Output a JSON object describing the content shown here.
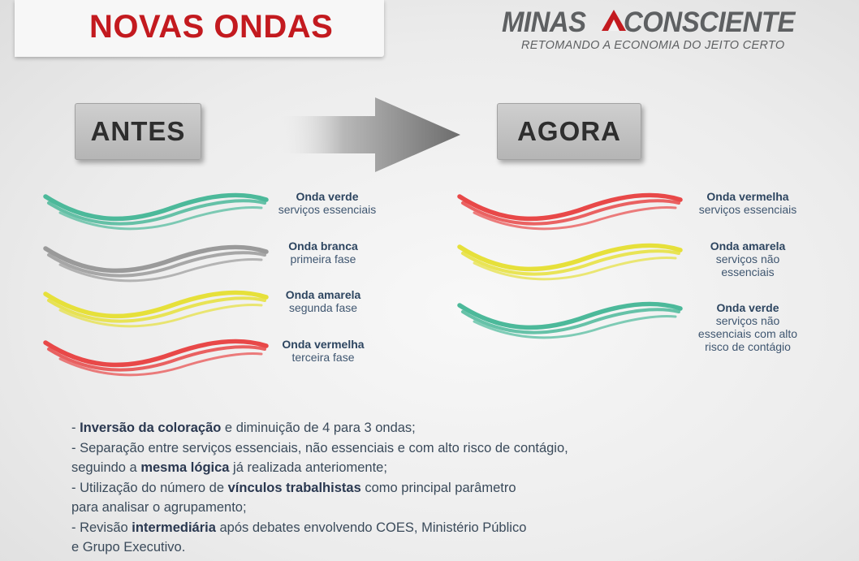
{
  "header": {
    "title": "NOVAS ONDAS",
    "logo": {
      "word1": "MINAS",
      "word2": "CONSCIENTE",
      "tagline": "RETOMANDO A ECONOMIA DO JEITO CERTO"
    }
  },
  "antes": {
    "label": "ANTES",
    "waves": [
      {
        "name": "Onda verde",
        "desc": [
          "serviços essenciais"
        ],
        "color": "#4cb99a"
      },
      {
        "name": "Onda branca",
        "desc": [
          "primeira fase"
        ],
        "color": "#9a9a9a"
      },
      {
        "name": "Onda amarela",
        "desc": [
          "segunda fase"
        ],
        "color": "#e6e03a"
      },
      {
        "name": "Onda vermelha",
        "desc": [
          "terceira fase"
        ],
        "color": "#e84848"
      }
    ]
  },
  "agora": {
    "label": "AGORA",
    "waves": [
      {
        "name": "Onda vermelha",
        "desc": [
          "serviços essenciais"
        ],
        "color": "#e84848"
      },
      {
        "name": "Onda amarela",
        "desc": [
          "serviços não",
          "essenciais"
        ],
        "color": "#e6e03a"
      },
      {
        "name": "Onda verde",
        "desc": [
          "serviços não",
          "essenciais com alto",
          "risco de contágio"
        ],
        "color": "#4cb99a"
      }
    ]
  },
  "bullets": [
    [
      {
        "t": "- "
      },
      {
        "t": "Inversão da coloração",
        "b": true
      },
      {
        "t": " e diminuição de 4 para 3 ondas;"
      }
    ],
    [
      {
        "t": "- Separação entre serviços essenciais, não essenciais e com alto risco de contágio,"
      }
    ],
    [
      {
        "t": "seguindo a "
      },
      {
        "t": "mesma lógica",
        "b": true
      },
      {
        "t": " já realizada anteriomente;"
      }
    ],
    [
      {
        "t": "- Utilização do número de "
      },
      {
        "t": "vínculos trabalhistas",
        "b": true
      },
      {
        "t": " como principal parâmetro"
      }
    ],
    [
      {
        "t": "para analisar o agrupamento;"
      }
    ],
    [
      {
        "t": "- Revisão "
      },
      {
        "t": "intermediária",
        "b": true
      },
      {
        "t": " após debates envolvendo COES, Ministério Público"
      }
    ],
    [
      {
        "t": "e Grupo Executivo."
      }
    ]
  ]
}
